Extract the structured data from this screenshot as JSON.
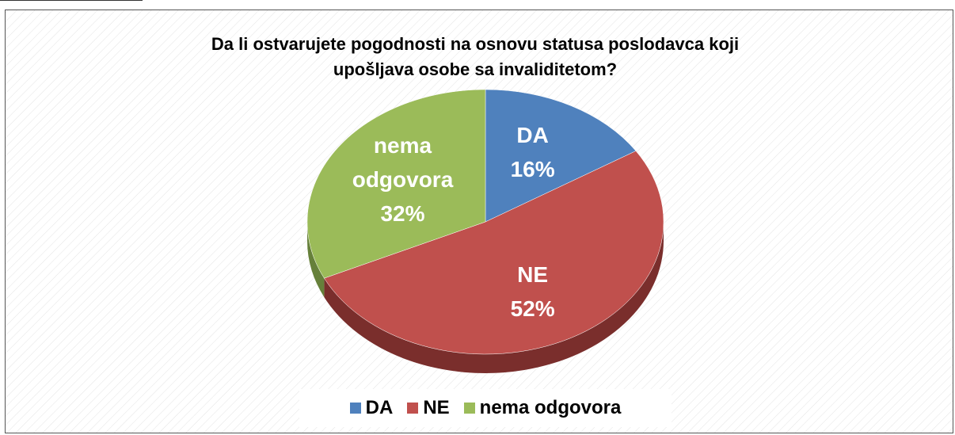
{
  "chart_data": {
    "type": "pie",
    "title": "Da li ostvarujete pogodnosti na osnovu statusa poslodavca koji upošljava osobe sa invaliditetom?",
    "categories": [
      "DA",
      "NE",
      "nema odgovora"
    ],
    "values": [
      16,
      52,
      32
    ],
    "value_labels": [
      "16%",
      "52%",
      "32%"
    ],
    "colors": [
      "#4f81bd",
      "#c0504d",
      "#9bbb59"
    ],
    "side_colors": [
      "#35577f",
      "#7a2e2c",
      "#66803a"
    ],
    "legend": "bottom"
  }
}
